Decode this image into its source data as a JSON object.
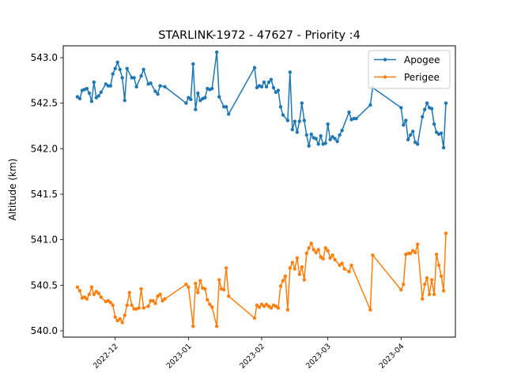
{
  "chart_data": {
    "type": "line",
    "title": "STARLINK-1972 - 47627 - Priority :4",
    "xlabel": "",
    "ylabel": "Altitude (km)",
    "x_type": "date",
    "xlim": [
      "2022-11-09",
      "2023-04-24"
    ],
    "ylim": [
      539.93,
      543.13
    ],
    "x_ticks": [
      "2022-12",
      "2023-01",
      "2023-02",
      "2023-03",
      "2023-04"
    ],
    "y_ticks": [
      "540.0",
      "540.5",
      "541.0",
      "541.5",
      "542.0",
      "542.5",
      "543.0"
    ],
    "grid": false,
    "legend_position": "upper right",
    "series": [
      {
        "name": "Apogee",
        "color": "#1f77b4",
        "points": [
          [
            "2022-11-15",
            542.57
          ],
          [
            "2022-11-16",
            542.55
          ],
          [
            "2022-11-17",
            542.64
          ],
          [
            "2022-11-18",
            542.65
          ],
          [
            "2022-11-19",
            542.66
          ],
          [
            "2022-11-20",
            542.61
          ],
          [
            "2022-11-21",
            542.52
          ],
          [
            "2022-11-22",
            542.73
          ],
          [
            "2022-11-23",
            542.56
          ],
          [
            "2022-11-24",
            542.58
          ],
          [
            "2022-11-25",
            542.62
          ],
          [
            "2022-11-27",
            542.71
          ],
          [
            "2022-11-28",
            542.69
          ],
          [
            "2022-11-29",
            542.69
          ],
          [
            "2022-11-30",
            542.82
          ],
          [
            "2022-12-01",
            542.88
          ],
          [
            "2022-12-02",
            542.95
          ],
          [
            "2022-12-03",
            542.87
          ],
          [
            "2022-12-04",
            542.78
          ],
          [
            "2022-12-05",
            542.53
          ],
          [
            "2022-12-06",
            542.88
          ],
          [
            "2022-12-08",
            542.78
          ],
          [
            "2022-12-09",
            542.78
          ],
          [
            "2022-12-10",
            542.68
          ],
          [
            "2022-12-12",
            542.8
          ],
          [
            "2022-12-13",
            542.87
          ],
          [
            "2022-12-15",
            542.71
          ],
          [
            "2022-12-16",
            542.72
          ],
          [
            "2022-12-18",
            542.63
          ],
          [
            "2022-12-19",
            542.6
          ],
          [
            "2022-12-20",
            542.69
          ],
          [
            "2022-12-22",
            542.68
          ],
          [
            "2022-12-31",
            542.5
          ],
          [
            "2023-01-01",
            542.56
          ],
          [
            "2023-01-02",
            542.54
          ],
          [
            "2023-01-03",
            542.93
          ],
          [
            "2023-01-04",
            542.43
          ],
          [
            "2023-01-05",
            542.61
          ],
          [
            "2023-01-06",
            542.53
          ],
          [
            "2023-01-07",
            542.55
          ],
          [
            "2023-01-08",
            542.56
          ],
          [
            "2023-01-09",
            542.66
          ],
          [
            "2023-01-10",
            542.65
          ],
          [
            "2023-01-11",
            542.66
          ],
          [
            "2023-01-13",
            543.06
          ],
          [
            "2023-01-14",
            542.57
          ],
          [
            "2023-01-16",
            542.46
          ],
          [
            "2023-01-17",
            542.46
          ],
          [
            "2023-01-18",
            542.38
          ],
          [
            "2023-01-29",
            542.89
          ],
          [
            "2023-01-30",
            542.67
          ],
          [
            "2023-01-31",
            542.69
          ],
          [
            "2023-02-01",
            542.68
          ],
          [
            "2023-02-02",
            542.73
          ],
          [
            "2023-02-03",
            542.68
          ],
          [
            "2023-02-04",
            542.73
          ],
          [
            "2023-02-05",
            542.76
          ],
          [
            "2023-02-06",
            542.67
          ],
          [
            "2023-02-07",
            542.62
          ],
          [
            "2023-02-08",
            542.64
          ],
          [
            "2023-02-09",
            542.46
          ],
          [
            "2023-02-10",
            542.37
          ],
          [
            "2023-02-12",
            542.31
          ],
          [
            "2023-02-13",
            542.84
          ],
          [
            "2023-02-14",
            542.21
          ],
          [
            "2023-02-15",
            542.3
          ],
          [
            "2023-02-16",
            542.18
          ],
          [
            "2023-02-17",
            542.3
          ],
          [
            "2023-02-18",
            542.5
          ],
          [
            "2023-02-19",
            542.31
          ],
          [
            "2023-02-20",
            542.15
          ],
          [
            "2023-02-21",
            542.03
          ],
          [
            "2023-02-22",
            542.16
          ],
          [
            "2023-02-23",
            542.12
          ],
          [
            "2023-02-24",
            542.11
          ],
          [
            "2023-02-25",
            542.05
          ],
          [
            "2023-02-26",
            542.14
          ],
          [
            "2023-02-27",
            542.05
          ],
          [
            "2023-02-28",
            542.06
          ],
          [
            "2023-03-01",
            542.27
          ],
          [
            "2023-03-02",
            542.1
          ],
          [
            "2023-03-03",
            542.13
          ],
          [
            "2023-03-04",
            542.11
          ],
          [
            "2023-03-05",
            542.08
          ],
          [
            "2023-03-06",
            542.15
          ],
          [
            "2023-03-07",
            542.2
          ],
          [
            "2023-03-10",
            542.4
          ],
          [
            "2023-03-11",
            542.32
          ],
          [
            "2023-03-12",
            542.33
          ],
          [
            "2023-03-13",
            542.33
          ],
          [
            "2023-03-19",
            542.48
          ],
          [
            "2023-03-20",
            542.67
          ],
          [
            "2023-04-01",
            542.45
          ],
          [
            "2023-04-02",
            542.26
          ],
          [
            "2023-04-03",
            542.31
          ],
          [
            "2023-04-04",
            542.1
          ],
          [
            "2023-04-05",
            542.15
          ],
          [
            "2023-04-06",
            542.19
          ],
          [
            "2023-04-07",
            542.07
          ],
          [
            "2023-04-08",
            542.05
          ],
          [
            "2023-04-10",
            542.35
          ],
          [
            "2023-04-11",
            542.43
          ],
          [
            "2023-04-12",
            542.5
          ],
          [
            "2023-04-13",
            542.45
          ],
          [
            "2023-04-14",
            542.44
          ],
          [
            "2023-04-15",
            542.27
          ],
          [
            "2023-04-16",
            542.18
          ],
          [
            "2023-04-17",
            542.16
          ],
          [
            "2023-04-18",
            542.17
          ],
          [
            "2023-04-19",
            542.01
          ],
          [
            "2023-04-20",
            542.5
          ]
        ]
      },
      {
        "name": "Perigee",
        "color": "#ff7f0e",
        "points": [
          [
            "2022-11-15",
            540.48
          ],
          [
            "2022-11-16",
            540.44
          ],
          [
            "2022-11-17",
            540.36
          ],
          [
            "2022-11-18",
            540.37
          ],
          [
            "2022-11-19",
            540.35
          ],
          [
            "2022-11-20",
            540.4
          ],
          [
            "2022-11-21",
            540.48
          ],
          [
            "2022-11-22",
            540.4
          ],
          [
            "2022-11-23",
            540.43
          ],
          [
            "2022-11-24",
            540.41
          ],
          [
            "2022-11-25",
            540.37
          ],
          [
            "2022-11-27",
            540.32
          ],
          [
            "2022-11-28",
            540.33
          ],
          [
            "2022-11-29",
            540.31
          ],
          [
            "2022-11-30",
            540.28
          ],
          [
            "2022-12-01",
            540.15
          ],
          [
            "2022-12-02",
            540.11
          ],
          [
            "2022-12-03",
            540.13
          ],
          [
            "2022-12-04",
            540.09
          ],
          [
            "2022-12-05",
            540.17
          ],
          [
            "2022-12-06",
            540.28
          ],
          [
            "2022-12-07",
            540.42
          ],
          [
            "2022-12-08",
            540.28
          ],
          [
            "2022-12-09",
            540.24
          ],
          [
            "2022-12-10",
            540.24
          ],
          [
            "2022-12-11",
            540.25
          ],
          [
            "2022-12-12",
            540.46
          ],
          [
            "2022-12-13",
            540.25
          ],
          [
            "2022-12-15",
            540.27
          ],
          [
            "2022-12-16",
            540.33
          ],
          [
            "2022-12-17",
            540.33
          ],
          [
            "2022-12-18",
            540.3
          ],
          [
            "2022-12-19",
            540.38
          ],
          [
            "2022-12-20",
            540.4
          ],
          [
            "2022-12-21",
            540.33
          ],
          [
            "2022-12-22",
            540.35
          ],
          [
            "2022-12-31",
            540.51
          ],
          [
            "2023-01-01",
            540.48
          ],
          [
            "2023-01-03",
            540.05
          ],
          [
            "2023-01-04",
            540.52
          ],
          [
            "2023-01-05",
            540.42
          ],
          [
            "2023-01-06",
            540.55
          ],
          [
            "2023-01-07",
            540.47
          ],
          [
            "2023-01-08",
            540.46
          ],
          [
            "2023-01-09",
            540.34
          ],
          [
            "2023-01-10",
            540.29
          ],
          [
            "2023-01-11",
            540.26
          ],
          [
            "2023-01-13",
            540.05
          ],
          [
            "2023-01-14",
            540.56
          ],
          [
            "2023-01-15",
            540.46
          ],
          [
            "2023-01-16",
            540.45
          ],
          [
            "2023-01-17",
            540.69
          ],
          [
            "2023-01-18",
            540.38
          ],
          [
            "2023-01-29",
            540.14
          ],
          [
            "2023-01-30",
            540.28
          ],
          [
            "2023-01-31",
            540.26
          ],
          [
            "2023-02-01",
            540.29
          ],
          [
            "2023-02-02",
            540.27
          ],
          [
            "2023-02-03",
            540.29
          ],
          [
            "2023-02-04",
            540.27
          ],
          [
            "2023-02-05",
            540.25
          ],
          [
            "2023-02-06",
            540.28
          ],
          [
            "2023-02-07",
            540.27
          ],
          [
            "2023-02-08",
            540.25
          ],
          [
            "2023-02-09",
            540.49
          ],
          [
            "2023-02-10",
            540.55
          ],
          [
            "2023-02-11",
            540.6
          ],
          [
            "2023-02-12",
            540.23
          ],
          [
            "2023-02-13",
            540.69
          ],
          [
            "2023-02-14",
            540.75
          ],
          [
            "2023-02-15",
            540.68
          ],
          [
            "2023-02-16",
            540.8
          ],
          [
            "2023-02-17",
            540.62
          ],
          [
            "2023-02-18",
            540.7
          ],
          [
            "2023-02-19",
            540.56
          ],
          [
            "2023-02-20",
            540.85
          ],
          [
            "2023-02-21",
            540.91
          ],
          [
            "2023-02-22",
            540.96
          ],
          [
            "2023-02-23",
            540.89
          ],
          [
            "2023-02-24",
            540.86
          ],
          [
            "2023-02-25",
            540.89
          ],
          [
            "2023-02-26",
            540.81
          ],
          [
            "2023-02-27",
            540.79
          ],
          [
            "2023-02-28",
            540.91
          ],
          [
            "2023-03-01",
            540.88
          ],
          [
            "2023-03-02",
            540.8
          ],
          [
            "2023-03-03",
            540.83
          ],
          [
            "2023-03-04",
            540.78
          ],
          [
            "2023-03-06",
            540.72
          ],
          [
            "2023-03-07",
            540.74
          ],
          [
            "2023-03-08",
            540.68
          ],
          [
            "2023-03-10",
            540.65
          ],
          [
            "2023-03-11",
            540.72
          ],
          [
            "2023-03-19",
            540.23
          ],
          [
            "2023-03-20",
            540.83
          ],
          [
            "2023-04-01",
            540.45
          ],
          [
            "2023-04-02",
            540.51
          ],
          [
            "2023-04-03",
            540.84
          ],
          [
            "2023-04-04",
            540.85
          ],
          [
            "2023-04-05",
            540.85
          ],
          [
            "2023-04-06",
            540.88
          ],
          [
            "2023-04-07",
            540.86
          ],
          [
            "2023-04-08",
            540.95
          ],
          [
            "2023-04-10",
            540.35
          ],
          [
            "2023-04-11",
            540.51
          ],
          [
            "2023-04-12",
            540.58
          ],
          [
            "2023-04-13",
            540.4
          ],
          [
            "2023-04-14",
            540.56
          ],
          [
            "2023-04-15",
            540.4
          ],
          [
            "2023-04-16",
            540.84
          ],
          [
            "2023-04-17",
            540.72
          ],
          [
            "2023-04-18",
            540.6
          ],
          [
            "2023-04-19",
            540.44
          ],
          [
            "2023-04-20",
            541.07
          ]
        ]
      }
    ]
  }
}
